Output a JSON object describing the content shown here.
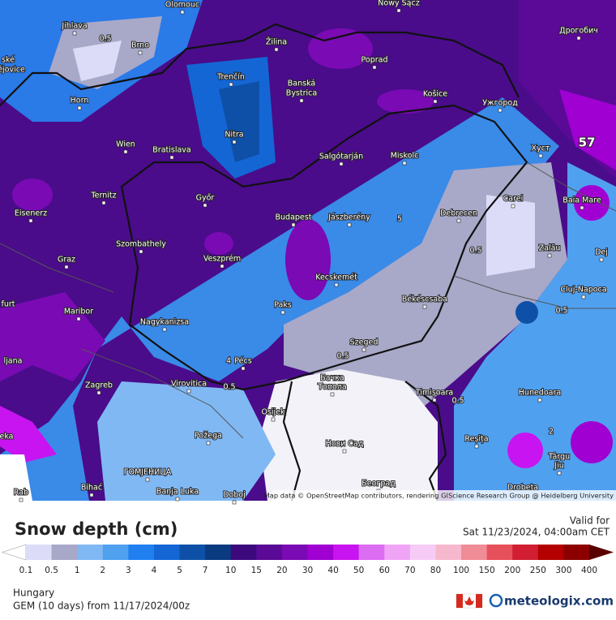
{
  "map_labels": [
    {
      "text": "Olomouc"
    },
    {
      "text": "Nowy Sącz"
    },
    {
      "text": "Дрогобич"
    },
    {
      "text": "Jihlava"
    },
    {
      "text": "0.5"
    },
    {
      "text": "Brno"
    },
    {
      "text": "Žilina"
    },
    {
      "text": "Poprad"
    },
    {
      "text": "ské"
    },
    {
      "text": "ějovice"
    },
    {
      "text": "Trenčín"
    },
    {
      "text": "Banská"
    },
    {
      "text": "Bystrica"
    },
    {
      "text": "Košice"
    },
    {
      "text": "Ужгород"
    },
    {
      "text": "Horn"
    },
    {
      "text": "Nitra"
    },
    {
      "text": "Wien"
    },
    {
      "text": "Bratislava"
    },
    {
      "text": "Salgótarján"
    },
    {
      "text": "Miskolc"
    },
    {
      "text": "Хуст"
    },
    {
      "text": "57"
    },
    {
      "text": "Ternitz"
    },
    {
      "text": "Győr"
    },
    {
      "text": "Carei"
    },
    {
      "text": "Baia Mare"
    },
    {
      "text": "Eisenerz"
    },
    {
      "text": "Budapest"
    },
    {
      "text": "Jászberény"
    },
    {
      "text": "Debrecen"
    },
    {
      "text": "5"
    },
    {
      "text": "Szombathely"
    },
    {
      "text": "0.5"
    },
    {
      "text": "Zalău"
    },
    {
      "text": "Graz"
    },
    {
      "text": "Veszprém"
    },
    {
      "text": "Dej"
    },
    {
      "text": "Kecskemét"
    },
    {
      "text": "Cluj-Napoca"
    },
    {
      "text": "Békéscsaba"
    },
    {
      "text": "furt"
    },
    {
      "text": "Paks"
    },
    {
      "text": "Maribor"
    },
    {
      "text": "0.5"
    },
    {
      "text": "Nagykanizsa"
    },
    {
      "text": "Szeged"
    },
    {
      "text": "0.5"
    },
    {
      "text": "ljana"
    },
    {
      "text": "4"
    },
    {
      "text": "Pécs"
    },
    {
      "text": "Zagreb"
    },
    {
      "text": "Virovitica"
    },
    {
      "text": "Бачка"
    },
    {
      "text": "Топола"
    },
    {
      "text": "0.5"
    },
    {
      "text": "Timișoara"
    },
    {
      "text": "Hunedoara"
    },
    {
      "text": "0.5"
    },
    {
      "text": "Osijek"
    },
    {
      "text": "Požega"
    },
    {
      "text": "Нови Сад"
    },
    {
      "text": "Reșița"
    },
    {
      "text": "2"
    },
    {
      "text": "eka"
    },
    {
      "text": "Târgu"
    },
    {
      "text": "Jiu"
    },
    {
      "text": "ГОМЈЕНИЦА"
    },
    {
      "text": "Bihać"
    },
    {
      "text": "Banja Luka"
    },
    {
      "text": "Doboj"
    },
    {
      "text": "Београд"
    },
    {
      "text": "Drobeta"
    },
    {
      "text": "Rab"
    }
  ],
  "attribution": "Map data © OpenStreetMap contributors, rendering GIScience Research Group @ Heidelberg University",
  "title": "Snow depth (cm)",
  "valid_label": "Valid for",
  "valid_time": "Sat 11/23/2024, 04:00am CET",
  "legend": {
    "ticks": [
      "0.1",
      "0.5",
      "1",
      "2",
      "3",
      "4",
      "5",
      "7",
      "10",
      "15",
      "20",
      "30",
      "40",
      "50",
      "60",
      "70",
      "80",
      "100",
      "150",
      "200",
      "250",
      "300",
      "400"
    ],
    "colors": [
      "#ffffff",
      "#dcdcf8",
      "#a8a8c8",
      "#80b8f4",
      "#50a0f0",
      "#2080f0",
      "#1466d4",
      "#0e50a8",
      "#0a3a80",
      "#3c0a7c",
      "#5a0a96",
      "#7a0ab4",
      "#a000d2",
      "#c814f0",
      "#dc6cf2",
      "#f0a4f6",
      "#f6ccf6",
      "#f6b8cc",
      "#f08c96",
      "#e6505a",
      "#d21e32",
      "#b40000",
      "#8c0000",
      "#5a0000"
    ]
  },
  "region": "Hungary",
  "model_run": "GEM (10 days) from 11/17/2024/00z",
  "brand": "meteologix.com"
}
